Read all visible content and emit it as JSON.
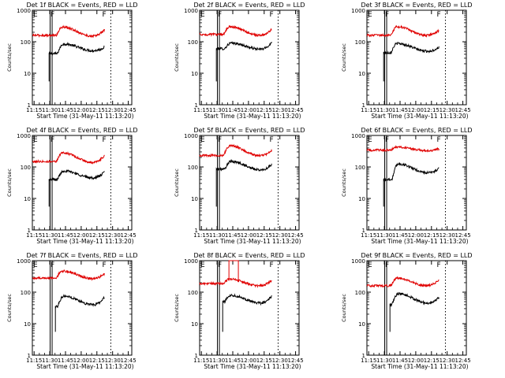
{
  "figure": {
    "layout": "3x3 grid",
    "colors": {
      "events": "#000000",
      "lld": "#e00000",
      "frame": "#000000"
    }
  },
  "chart_data": [
    {
      "type": "line",
      "title": "Det 1f BLACK = Events, RED = LLD",
      "xlabel": "Start Time (31-May-11 11:13:20)",
      "ylabel": "Counts/sec",
      "yscale": "log",
      "ylim": [
        1,
        1000
      ],
      "yticks": [
        "1",
        "10",
        "100",
        "1000"
      ],
      "xticks": [
        "11:15",
        "11:30",
        "11:45",
        "12:00",
        "12:15",
        "12:30",
        "12:45"
      ],
      "xlim_min": [
        0,
        95
      ],
      "markers": [
        {
          "label": "F",
          "x": 17
        },
        {
          "label": "F",
          "x": 75
        }
      ],
      "markers_e": [
        {
          "label": "E",
          "x": 17.5
        }
      ],
      "events": {
        "start": 16,
        "end": 69,
        "plateau": 42,
        "peak": 85,
        "peak_t": 30,
        "trough": 52,
        "trough_t": 58,
        "final": 68
      },
      "lld": {
        "start": 25,
        "end": 69,
        "base": 160,
        "peak": 290,
        "peak_t": 29,
        "trough": 150,
        "trough_t": 57,
        "final": 240
      },
      "spikes": []
    },
    {
      "type": "line",
      "title": "Det 2f BLACK = Events, RED = LLD",
      "xlabel": "Start Time (31-May-11 11:13:20)",
      "ylabel": "Counts/sec",
      "yscale": "log",
      "ylim": [
        1,
        1000
      ],
      "yticks": [
        "1",
        "10",
        "100",
        "1000"
      ],
      "xticks": [
        "11:15",
        "11:30",
        "11:45",
        "12:00",
        "12:15",
        "12:30",
        "12:45"
      ],
      "xlim_min": [
        0,
        95
      ],
      "markers": [
        {
          "label": "F",
          "x": 17
        },
        {
          "label": "F",
          "x": 75
        }
      ],
      "markers_e": [
        {
          "label": "E",
          "x": 17.5
        }
      ],
      "events": {
        "start": 16,
        "end": 69,
        "plateau": 60,
        "peak": 90,
        "peak_t": 30,
        "trough": 58,
        "trough_t": 58,
        "final": 95
      },
      "lld": {
        "start": 25,
        "end": 69,
        "base": 170,
        "peak": 300,
        "peak_t": 29,
        "trough": 160,
        "trough_t": 57,
        "final": 250
      },
      "spikes": []
    },
    {
      "type": "line",
      "title": "Det 3f BLACK = Events, RED = LLD",
      "xlabel": "Start Time (31-May-11 11:13:20)",
      "ylabel": "Counts/sec",
      "yscale": "log",
      "ylim": [
        1,
        1000
      ],
      "yticks": [
        "1",
        "10",
        "100",
        "1000"
      ],
      "xticks": [
        "11:15",
        "11:30",
        "11:45",
        "12:00",
        "12:15",
        "12:30",
        "12:45"
      ],
      "xlim_min": [
        0,
        95
      ],
      "markers": [
        {
          "label": "F",
          "x": 17
        },
        {
          "label": "F",
          "x": 75
        }
      ],
      "markers_e": [
        {
          "label": "E",
          "x": 17.5
        }
      ],
      "events": {
        "start": 16,
        "end": 69,
        "plateau": 45,
        "peak": 88,
        "peak_t": 29,
        "trough": 50,
        "trough_t": 58,
        "final": 68
      },
      "lld": {
        "start": 25,
        "end": 69,
        "base": 160,
        "peak": 300,
        "peak_t": 29,
        "trough": 160,
        "trough_t": 57,
        "final": 230
      },
      "spikes": []
    },
    {
      "type": "line",
      "title": "Det 4f BLACK = Events, RED = LLD",
      "xlabel": "Start Time (31-May-11 11:13:20)",
      "ylabel": "Counts/sec",
      "yscale": "log",
      "ylim": [
        1,
        1000
      ],
      "yticks": [
        "1",
        "10",
        "100",
        "1000"
      ],
      "xticks": [
        "11:15",
        "11:30",
        "11:45",
        "12:00",
        "12:15",
        "12:30",
        "12:45"
      ],
      "xlim_min": [
        0,
        95
      ],
      "markers": [
        {
          "label": "F",
          "x": 17
        },
        {
          "label": "F",
          "x": 75
        }
      ],
      "markers_e": [
        {
          "label": "E",
          "x": 17.5
        }
      ],
      "events": {
        "start": 16,
        "end": 69,
        "plateau": 40,
        "peak": 75,
        "peak_t": 30,
        "trough": 45,
        "trough_t": 58,
        "final": 70
      },
      "lld": {
        "start": 25,
        "end": 69,
        "base": 150,
        "peak": 280,
        "peak_t": 29,
        "trough": 140,
        "trough_t": 57,
        "final": 230
      },
      "spikes": []
    },
    {
      "type": "line",
      "title": "Det 5f BLACK = Events, RED = LLD",
      "xlabel": "Start Time (31-May-11 11:13:20)",
      "ylabel": "Counts/sec",
      "yscale": "log",
      "ylim": [
        1,
        1000
      ],
      "yticks": [
        "1",
        "10",
        "100",
        "1000"
      ],
      "xticks": [
        "11:15",
        "11:30",
        "11:45",
        "12:00",
        "12:15",
        "12:30",
        "12:45"
      ],
      "xlim_min": [
        0,
        95
      ],
      "markers": [
        {
          "label": "F",
          "x": 17
        },
        {
          "label": "F",
          "x": 75
        }
      ],
      "markers_e": [
        {
          "label": "E",
          "x": 17.5
        }
      ],
      "events": {
        "start": 16,
        "end": 69,
        "plateau": 85,
        "peak": 150,
        "peak_t": 30,
        "trough": 80,
        "trough_t": 58,
        "final": 120
      },
      "lld": {
        "start": 25,
        "end": 69,
        "base": 230,
        "peak": 470,
        "peak_t": 29,
        "trough": 230,
        "trough_t": 57,
        "final": 330
      },
      "spikes": []
    },
    {
      "type": "line",
      "title": "Det 6f BLACK = Events, RED = LLD",
      "xlabel": "Start Time (31-May-11 11:13:20)",
      "ylabel": "Counts/sec",
      "yscale": "log",
      "ylim": [
        1,
        1000
      ],
      "yticks": [
        "1",
        "10",
        "100",
        "1000"
      ],
      "xticks": [
        "11:15",
        "11:30",
        "11:45",
        "12:00",
        "12:15",
        "12:30",
        "12:45"
      ],
      "xlim_min": [
        0,
        95
      ],
      "markers": [
        {
          "label": "F",
          "x": 17
        },
        {
          "label": "F",
          "x": 75
        }
      ],
      "markers_e": [
        {
          "label": "E",
          "x": 17.5
        }
      ],
      "events": {
        "start": 16,
        "end": 69,
        "plateau": 40,
        "peak": 125,
        "peak_t": 30,
        "trough": 65,
        "trough_t": 58,
        "final": 90
      },
      "lld": {
        "start": 25,
        "end": 69,
        "base": 340,
        "peak": 430,
        "peak_t": 29,
        "trough": 330,
        "trough_t": 57,
        "final": 380
      },
      "spikes": []
    },
    {
      "type": "line",
      "title": "Det 7f BLACK = Events, RED = LLD",
      "xlabel": "Start Time (31-May-11 11:13:20)",
      "ylabel": "Counts/sec",
      "yscale": "log",
      "ylim": [
        1,
        1000
      ],
      "yticks": [
        "1",
        "10",
        "100",
        "1000"
      ],
      "xticks": [
        "11:15",
        "11:30",
        "11:45",
        "12:00",
        "12:15",
        "12:30",
        "12:45"
      ],
      "xlim_min": [
        0,
        95
      ],
      "markers": [
        {
          "label": "F",
          "x": 17
        },
        {
          "label": "F",
          "x": 75
        }
      ],
      "markers_e": [
        {
          "label": "E",
          "x": 17.5
        }
      ],
      "events": {
        "start": 22,
        "end": 69,
        "plateau": 35,
        "peak": 75,
        "peak_t": 30,
        "trough": 40,
        "trough_t": 58,
        "final": 70
      },
      "lld": {
        "start": 25,
        "end": 69,
        "base": 280,
        "peak": 470,
        "peak_t": 29,
        "trough": 270,
        "trough_t": 57,
        "final": 380
      },
      "spikes": []
    },
    {
      "type": "line",
      "title": "Det 8f BLACK = Events, RED = LLD",
      "xlabel": "Start Time (31-May-11 11:13:20)",
      "ylabel": "Counts/sec",
      "yscale": "log",
      "ylim": [
        1,
        1000
      ],
      "yticks": [
        "1",
        "10",
        "100",
        "1000"
      ],
      "xticks": [
        "11:15",
        "11:30",
        "11:45",
        "12:00",
        "12:15",
        "12:30",
        "12:45"
      ],
      "xlim_min": [
        0,
        95
      ],
      "markers": [
        {
          "label": "F",
          "x": 17
        },
        {
          "label": "F",
          "x": 75
        }
      ],
      "markers_e": [
        {
          "label": "E",
          "x": 17.5
        }
      ],
      "events": {
        "start": 22,
        "end": 69,
        "plateau": 50,
        "peak": 80,
        "peak_t": 30,
        "trough": 45,
        "trough_t": 58,
        "final": 75
      },
      "lld": {
        "start": 25,
        "end": 69,
        "base": 190,
        "peak": 260,
        "peak_t": 29,
        "trough": 160,
        "trough_t": 57,
        "final": 240
      },
      "spikes": [
        {
          "from": 28,
          "to": 37,
          "value": 1000
        }
      ]
    },
    {
      "type": "line",
      "title": "Det 9f BLACK = Events, RED = LLD",
      "xlabel": "Start Time (31-May-11 11:13:20)",
      "ylabel": "Counts/sec",
      "yscale": "log",
      "ylim": [
        1,
        1000
      ],
      "yticks": [
        "1",
        "10",
        "100",
        "1000"
      ],
      "xticks": [
        "11:15",
        "11:30",
        "11:45",
        "12:00",
        "12:15",
        "12:30",
        "12:45"
      ],
      "xlim_min": [
        0,
        95
      ],
      "markers": [
        {
          "label": "F",
          "x": 17
        },
        {
          "label": "F",
          "x": 75
        }
      ],
      "markers_e": [
        {
          "label": "E",
          "x": 17.5
        }
      ],
      "events": {
        "start": 22,
        "end": 69,
        "plateau": 40,
        "peak": 90,
        "peak_t": 30,
        "trough": 45,
        "trough_t": 58,
        "final": 70
      },
      "lld": {
        "start": 25,
        "end": 69,
        "base": 160,
        "peak": 280,
        "peak_t": 29,
        "trough": 160,
        "trough_t": 57,
        "final": 250
      },
      "spikes": []
    }
  ]
}
